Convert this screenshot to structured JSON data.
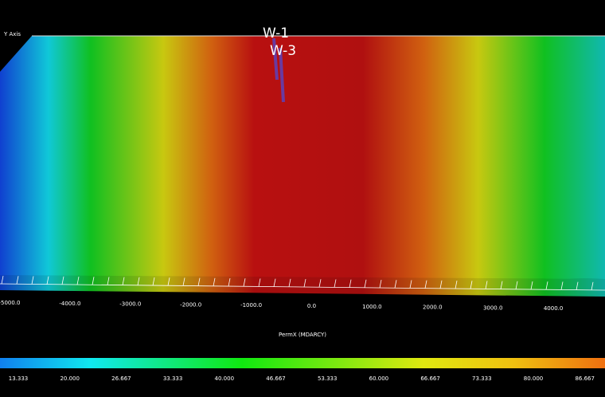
{
  "viewport": {
    "axis_label": "Y Axis",
    "wells": [
      "W-1",
      "W-3"
    ]
  },
  "x_axis": {
    "title": "PermX (MDARCY)",
    "ticks": [
      "-5000.0",
      "-4000.0",
      "-3000.0",
      "-2000.0",
      "-1000.0",
      "0.0",
      "1000.0",
      "2000.0",
      "3000.0",
      "4000.0"
    ]
  },
  "color_bar": {
    "ticks": [
      "13.333",
      "20.000",
      "26.667",
      "33.333",
      "40.000",
      "46.667",
      "53.333",
      "60.000",
      "66.667",
      "73.333",
      "80.000",
      "86.667"
    ]
  }
}
